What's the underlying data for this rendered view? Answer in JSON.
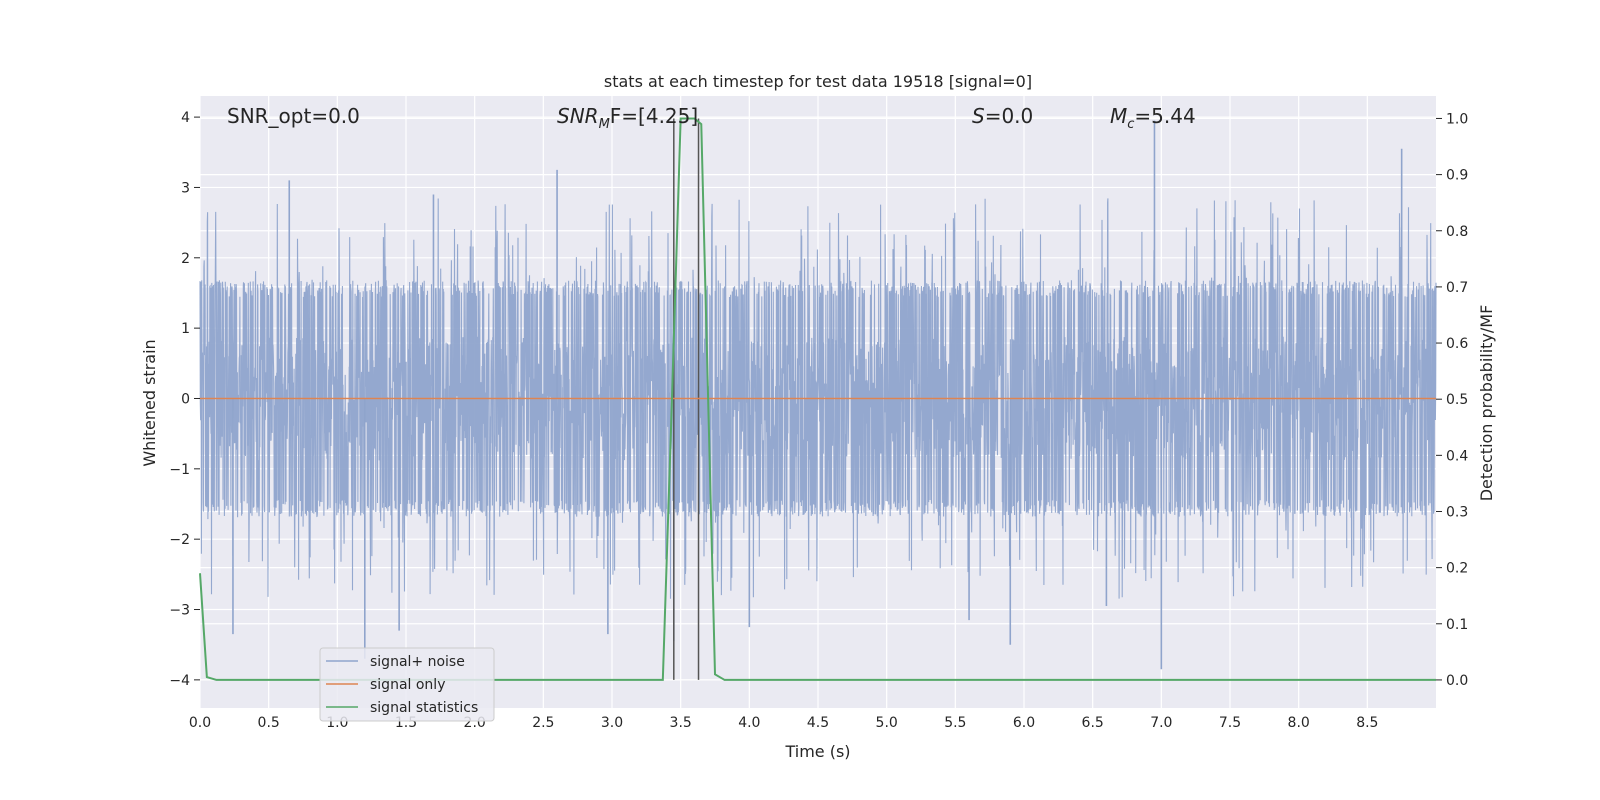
{
  "chart_data": {
    "type": "line",
    "title": "stats at each timestep for test data 19518 [signal=0]",
    "xlabel": "Time (s)",
    "ylabel": "Whitened strain",
    "y2label": "Detection probability/MF",
    "xlim": [
      0.0,
      9.0
    ],
    "ylim": [
      -4.4,
      4.3
    ],
    "y2lim": [
      -0.05,
      1.04
    ],
    "xticks": [
      "0.0",
      "0.5",
      "1.0",
      "1.5",
      "2.0",
      "2.5",
      "3.0",
      "3.5",
      "4.0",
      "4.5",
      "5.0",
      "5.5",
      "6.0",
      "6.5",
      "7.0",
      "7.5",
      "8.0",
      "8.5"
    ],
    "yticks": [
      "4",
      "3",
      "2",
      "1",
      "0",
      "−1",
      "−2",
      "−3",
      "−4"
    ],
    "y2ticks": [
      "1.0",
      "0.9",
      "0.8",
      "0.7",
      "0.6",
      "0.5",
      "0.4",
      "0.3",
      "0.2",
      "0.1",
      "0.0"
    ],
    "grid": true,
    "legend_position": "lower-left",
    "annotations": {
      "snr_opt": "SNR_opt=0.0",
      "snr_mf_main": "SNR",
      "snr_mf_sub": "M",
      "snr_mf_rest": "F=[4.25]",
      "s_main": "S",
      "s_rest": "=0.0",
      "mc_main": "M",
      "mc_sub": "c",
      "mc_rest": "=5.44"
    },
    "vertical_markers": [
      3.45,
      3.63
    ],
    "series": [
      {
        "name": "signal+ noise",
        "color": "#8fa4cc",
        "kind": "noise",
        "envelope_typical": 1.6,
        "peaks": [
          {
            "x": 0.65,
            "y": 3.1
          },
          {
            "x": 1.7,
            "y": 2.9
          },
          {
            "x": 2.6,
            "y": 3.25
          },
          {
            "x": 2.97,
            "y": -3.35
          },
          {
            "x": 3.45,
            "y": -3.45
          },
          {
            "x": 5.6,
            "y": -3.15
          },
          {
            "x": 5.9,
            "y": -3.5
          },
          {
            "x": 6.95,
            "y": 3.95
          },
          {
            "x": 7.0,
            "y": -3.85
          },
          {
            "x": 8.75,
            "y": 3.55
          },
          {
            "x": 0.24,
            "y": -3.35
          },
          {
            "x": 1.2,
            "y": -3.7
          },
          {
            "x": 1.45,
            "y": -3.3
          },
          {
            "x": 4.0,
            "y": -3.25
          },
          {
            "x": 6.6,
            "y": -2.95
          }
        ]
      },
      {
        "name": "signal only",
        "color": "#dd8452",
        "x": [
          0.0,
          9.0
        ],
        "y": [
          0.0,
          0.0
        ]
      },
      {
        "name": "signal statistics",
        "color": "#55a868",
        "axis": "right",
        "x": [
          0.0,
          0.05,
          0.12,
          3.37,
          3.43,
          3.5,
          3.6,
          3.65,
          3.75,
          3.82,
          9.0
        ],
        "y": [
          0.19,
          0.005,
          0.0,
          0.0,
          0.45,
          1.0,
          1.0,
          0.99,
          0.01,
          0.0,
          0.0
        ]
      }
    ]
  }
}
